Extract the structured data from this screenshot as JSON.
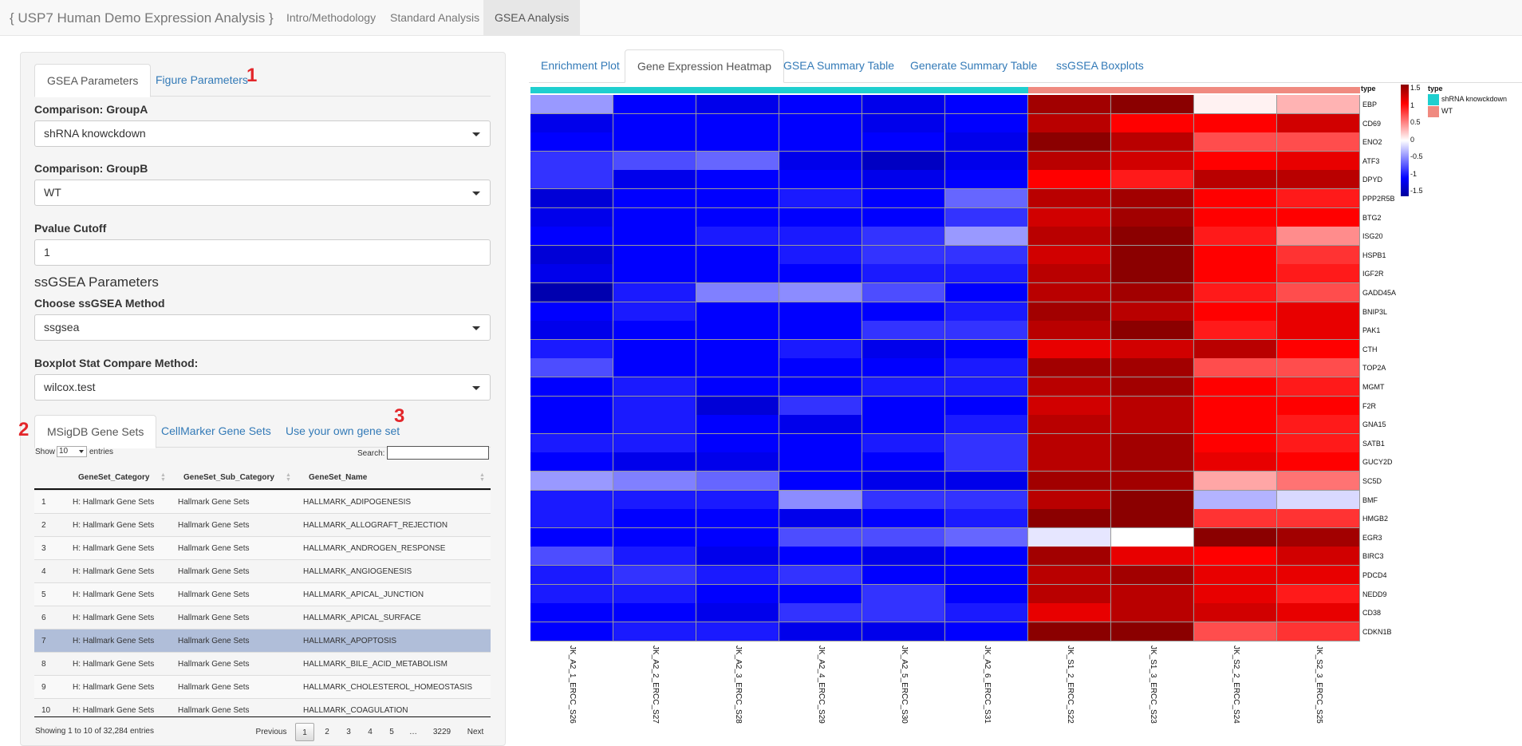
{
  "navbar": {
    "brand": "{ USP7 Human Demo Expression Analysis }",
    "tabs": [
      "Intro/Methodology",
      "Standard Analysis",
      "GSEA Analysis"
    ],
    "active_tab": "GSEA Analysis"
  },
  "sidebar": {
    "param_tabs": [
      "GSEA Parameters",
      "Figure Parameters"
    ],
    "annotations": [
      "1",
      "2",
      "3"
    ],
    "groupA_label": "Comparison: GroupA",
    "groupA_value": "shRNA knowckdown",
    "groupB_label": "Comparison: GroupB",
    "groupB_value": "WT",
    "pvalue_label": "Pvalue Cutoff",
    "pvalue_value": "1",
    "ssgsea_heading": "ssGSEA Parameters",
    "method_label": "Choose ssGSEA Method",
    "method_value": "ssgsea",
    "boxplot_label": "Boxplot Stat Compare Method:",
    "boxplot_value": "wilcox.test",
    "geneset_tabs": [
      "MSigDB Gene Sets",
      "CellMarker Gene Sets",
      "Use your own gene set"
    ]
  },
  "datatable": {
    "show_label": "Show",
    "length_value": "10",
    "entries_label": "entries",
    "search_label": "Search:",
    "columns": [
      "GeneSet_Category",
      "GeneSet_Sub_Category",
      "GeneSet_Name"
    ],
    "rows": [
      [
        "1",
        "H: Hallmark Gene Sets",
        "Hallmark Gene Sets",
        "HALLMARK_ADIPOGENESIS"
      ],
      [
        "2",
        "H: Hallmark Gene Sets",
        "Hallmark Gene Sets",
        "HALLMARK_ALLOGRAFT_REJECTION"
      ],
      [
        "3",
        "H: Hallmark Gene Sets",
        "Hallmark Gene Sets",
        "HALLMARK_ANDROGEN_RESPONSE"
      ],
      [
        "4",
        "H: Hallmark Gene Sets",
        "Hallmark Gene Sets",
        "HALLMARK_ANGIOGENESIS"
      ],
      [
        "5",
        "H: Hallmark Gene Sets",
        "Hallmark Gene Sets",
        "HALLMARK_APICAL_JUNCTION"
      ],
      [
        "6",
        "H: Hallmark Gene Sets",
        "Hallmark Gene Sets",
        "HALLMARK_APICAL_SURFACE"
      ],
      [
        "7",
        "H: Hallmark Gene Sets",
        "Hallmark Gene Sets",
        "HALLMARK_APOPTOSIS"
      ],
      [
        "8",
        "H: Hallmark Gene Sets",
        "Hallmark Gene Sets",
        "HALLMARK_BILE_ACID_METABOLISM"
      ],
      [
        "9",
        "H: Hallmark Gene Sets",
        "Hallmark Gene Sets",
        "HALLMARK_CHOLESTEROL_HOMEOSTASIS"
      ],
      [
        "10",
        "H: Hallmark Gene Sets",
        "Hallmark Gene Sets",
        "HALLMARK_COAGULATION"
      ]
    ],
    "selected_row": 7,
    "info": "Showing 1 to 10 of 32,284 entries",
    "pagination": [
      "Previous",
      "1",
      "2",
      "3",
      "4",
      "5",
      "…",
      "3229",
      "Next"
    ]
  },
  "main": {
    "tabs": [
      "Enrichment Plot",
      "Gene Expression Heatmap",
      "GSEA Summary Table",
      "Generate Summary Table",
      "ssGSEA Boxplots"
    ],
    "active_tab": "Gene Expression Heatmap"
  },
  "chart_data": {
    "type": "heatmap",
    "title": "",
    "annotation_title": "type",
    "legend": {
      "scale_ticks": [
        "1.5",
        "1",
        "0.5",
        "0",
        "-0.5",
        "-1",
        "-1.5"
      ],
      "type_title": "type",
      "type_entries": [
        {
          "name": "shRNA knowckdown",
          "color": "#1fcfcf"
        },
        {
          "name": "WT",
          "color": "#f08a80"
        }
      ]
    },
    "colors": {
      "low": "#0000ff",
      "mid": "#ffffff",
      "high": "#8b0000"
    },
    "samples": [
      "JK_A2_1_ERCC_S26",
      "JK_A2_2_ERCC_S27",
      "JK_A2_3_ERCC_S28",
      "JK_A2_4_ERCC_S29",
      "JK_A2_5_ERCC_S30",
      "JK_A2_6_ERCC_S31",
      "JK_S1_2_ERCC_S22",
      "JK_S1_3_ERCC_S23",
      "JK_S2_2_ERCC_S24",
      "JK_S2_3_ERCC_S25"
    ],
    "sample_types": [
      "shRNA knowckdown",
      "shRNA knowckdown",
      "shRNA knowckdown",
      "shRNA knowckdown",
      "shRNA knowckdown",
      "shRNA knowckdown",
      "WT",
      "WT",
      "WT",
      "WT"
    ],
    "genes": [
      "EBP",
      "CD69",
      "ENO2",
      "ATF3",
      "DPYD",
      "PPP2R5B",
      "BTG2",
      "ISG20",
      "HSPB1",
      "IGF2R",
      "GADD45A",
      "BNIP3L",
      "PAK1",
      "CTH",
      "TOP2A",
      "MGMT",
      "F2R",
      "GNA15",
      "SATB1",
      "GUCY2D",
      "SC5D",
      "BMF",
      "HMGB2",
      "EGR3",
      "BIRC3",
      "PDCD4",
      "NEDD9",
      "CD38",
      "CDKN1B"
    ],
    "values": [
      [
        -0.4,
        -1.0,
        -1.1,
        -1.0,
        -1.1,
        -1.0,
        1.4,
        1.5,
        0.05,
        0.3
      ],
      [
        -1.1,
        -1.0,
        -1.0,
        -1.0,
        -1.1,
        -1.0,
        1.3,
        1.0,
        1.0,
        1.2
      ],
      [
        -1.0,
        -1.0,
        -1.0,
        -1.0,
        -1.0,
        -1.1,
        1.5,
        1.3,
        0.7,
        0.7
      ],
      [
        -0.8,
        -0.7,
        -0.6,
        -1.1,
        -1.3,
        -1.1,
        1.3,
        1.2,
        1.0,
        1.1
      ],
      [
        -0.8,
        -1.1,
        -1.0,
        -1.0,
        -1.1,
        -1.0,
        1.0,
        0.9,
        1.3,
        1.3
      ],
      [
        -1.2,
        -1.0,
        -1.0,
        -0.9,
        -1.0,
        -0.6,
        1.3,
        1.4,
        1.0,
        0.9
      ],
      [
        -1.1,
        -1.0,
        -1.0,
        -1.0,
        -1.0,
        -0.8,
        1.2,
        1.4,
        1.0,
        1.0
      ],
      [
        -1.0,
        -1.0,
        -0.9,
        -0.9,
        -0.8,
        -0.4,
        1.3,
        1.5,
        0.9,
        0.45
      ],
      [
        -1.2,
        -1.0,
        -1.0,
        -0.9,
        -0.8,
        -0.8,
        1.2,
        1.5,
        1.0,
        0.8
      ],
      [
        -1.1,
        -1.0,
        -1.0,
        -1.0,
        -0.9,
        -0.9,
        1.3,
        1.5,
        1.0,
        0.9
      ],
      [
        -1.4,
        -0.9,
        -0.5,
        -0.45,
        -0.7,
        -1.0,
        1.3,
        1.4,
        0.9,
        0.7
      ],
      [
        -1.0,
        -0.9,
        -1.0,
        -1.0,
        -1.0,
        -0.9,
        1.4,
        1.3,
        1.0,
        1.1
      ],
      [
        -1.1,
        -1.0,
        -1.0,
        -1.0,
        -0.8,
        -0.8,
        1.3,
        1.5,
        0.9,
        1.1
      ],
      [
        -0.9,
        -1.0,
        -1.0,
        -0.9,
        -1.1,
        -1.0,
        1.1,
        1.2,
        1.3,
        1.0
      ],
      [
        -0.7,
        -1.0,
        -1.0,
        -1.0,
        -1.0,
        -0.9,
        1.4,
        1.4,
        0.7,
        0.7
      ],
      [
        -1.0,
        -0.9,
        -1.0,
        -1.0,
        -0.9,
        -0.9,
        1.3,
        1.4,
        1.0,
        0.9
      ],
      [
        -1.0,
        -0.9,
        -1.2,
        -0.8,
        -1.0,
        -1.0,
        1.2,
        1.3,
        1.0,
        1.0
      ],
      [
        -1.0,
        -0.9,
        -1.0,
        -1.1,
        -1.0,
        -0.9,
        1.3,
        1.3,
        1.0,
        0.9
      ],
      [
        -0.9,
        -0.9,
        -1.0,
        -1.0,
        -0.9,
        -0.8,
        1.3,
        1.4,
        1.0,
        0.9
      ],
      [
        -1.0,
        -1.1,
        -1.1,
        -1.0,
        -1.0,
        -0.8,
        1.3,
        1.4,
        1.1,
        1.0
      ],
      [
        -0.4,
        -0.5,
        -0.6,
        -1.0,
        -1.1,
        -1.1,
        1.4,
        1.4,
        0.35,
        0.55
      ],
      [
        -0.9,
        -0.9,
        -0.9,
        -0.45,
        -0.8,
        -0.8,
        1.3,
        1.5,
        -0.3,
        -0.15
      ],
      [
        -0.9,
        -1.0,
        -1.0,
        -1.1,
        -1.0,
        -0.9,
        1.5,
        1.5,
        0.8,
        0.8
      ],
      [
        -1.0,
        -1.0,
        -1.0,
        -0.7,
        -0.7,
        -0.6,
        -0.1,
        0.0,
        1.5,
        1.4
      ],
      [
        -0.7,
        -0.9,
        -1.1,
        -1.0,
        -1.1,
        -1.0,
        1.4,
        1.1,
        1.0,
        1.2
      ],
      [
        -0.9,
        -0.8,
        -0.9,
        -0.8,
        -1.0,
        -1.0,
        1.3,
        1.4,
        1.1,
        1.1
      ],
      [
        -0.9,
        -0.9,
        -1.0,
        -1.0,
        -0.8,
        -1.0,
        1.3,
        1.3,
        1.1,
        0.9
      ],
      [
        -1.0,
        -1.0,
        -1.1,
        -0.8,
        -0.8,
        -0.9,
        1.1,
        1.3,
        1.2,
        1.1
      ],
      [
        -1.0,
        -0.9,
        -0.9,
        -1.1,
        -1.1,
        -1.0,
        1.5,
        1.5,
        0.7,
        0.8
      ]
    ]
  }
}
